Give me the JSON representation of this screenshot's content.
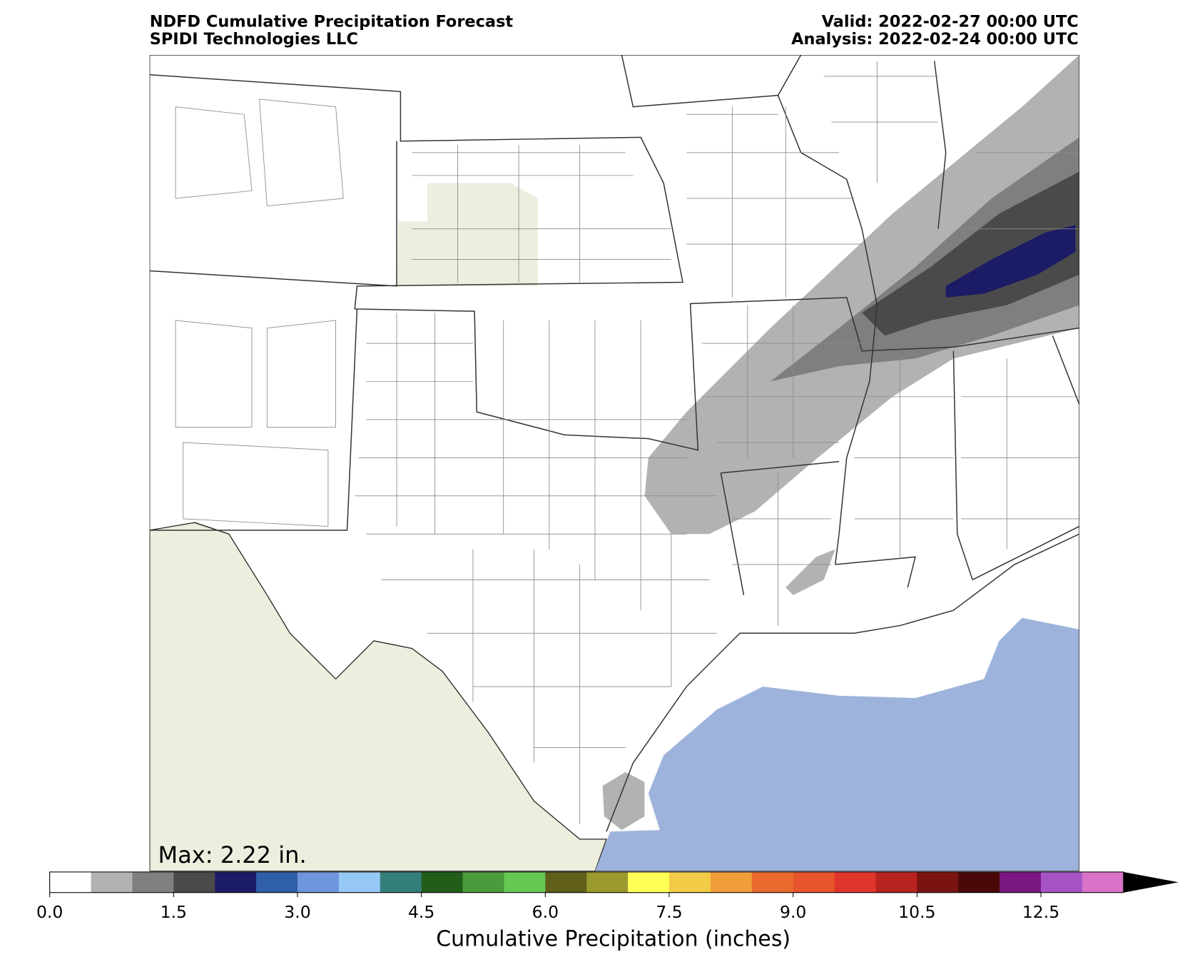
{
  "header": {
    "title": "NDFD Cumulative Precipitation Forecast",
    "subtitle": "SPIDI Technologies LLC",
    "valid": "Valid: 2022-02-27 00:00 UTC",
    "analysis": "Analysis: 2022-02-24 00:00 UTC"
  },
  "map": {
    "annotation": "Max: 2.22 in."
  },
  "colorbar": {
    "label": "Cumulative Precipitation (inches)",
    "bounds": [
      0,
      0.5,
      1,
      1.5,
      2,
      2.5,
      3,
      3.5,
      4,
      4.5,
      5,
      5.5,
      6,
      6.5,
      7,
      7.5,
      8,
      8.5,
      9,
      9.5,
      10,
      10.5,
      11,
      12,
      12.5,
      13,
      14
    ],
    "colors": [
      "#ffffff",
      "#b2b2b2",
      "#7f7f7f",
      "#4a4a4a",
      "#1b1b66",
      "#2f5fa8",
      "#6f95dc",
      "#95c8f5",
      "#357f7b",
      "#225e1a",
      "#4b9a3b",
      "#64c853",
      "#5f5f1a",
      "#9a9a2f",
      "#ffff55",
      "#f3cc47",
      "#f09d3a",
      "#ea6a2d",
      "#e5542a",
      "#e0352a",
      "#b7231f",
      "#7a1410",
      "#4a0909",
      "#7a1780",
      "#a653c6",
      "#d873c8"
    ],
    "extend_color": "#000000",
    "ticks": [
      {
        "value": 0,
        "label": "0.0"
      },
      1.5,
      {
        "value": 3,
        "label": "3.0"
      },
      4.5,
      {
        "value": 6,
        "label": "6.0"
      },
      7.5,
      {
        "value": 9,
        "label": "9.0"
      },
      10.5,
      12.5
    ]
  }
}
